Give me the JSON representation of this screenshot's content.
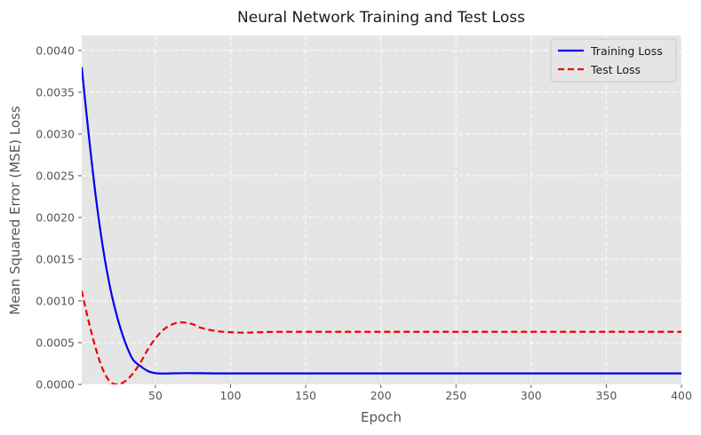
{
  "chart_data": {
    "type": "line",
    "title": "Neural Network Training and Test Loss",
    "xlabel": "Epoch",
    "ylabel": "Mean Squared Error (MSE) Loss",
    "xlim": [
      1,
      400
    ],
    "ylim": [
      0,
      0.00418
    ],
    "x_ticks": [
      50,
      100,
      150,
      200,
      250,
      300,
      350,
      400
    ],
    "y_ticks": [
      "0.0000",
      "0.0005",
      "0.0010",
      "0.0015",
      "0.0020",
      "0.0025",
      "0.0030",
      "0.0035",
      "0.0040"
    ],
    "grid": true,
    "legend_position": "top-right",
    "series": [
      {
        "name": "Training Loss",
        "color": "#0000ee",
        "style": "solid",
        "x": [
          1,
          5,
          10,
          15,
          20,
          25,
          30,
          35,
          40,
          45,
          50,
          55,
          60,
          70,
          80,
          90,
          100,
          150,
          200,
          250,
          300,
          350,
          400
        ],
        "y": [
          0.0038,
          0.0031,
          0.0023,
          0.00165,
          0.00115,
          0.00078,
          0.0005,
          0.0003,
          0.00022,
          0.00016,
          0.000135,
          0.00013,
          0.000132,
          0.000135,
          0.000134,
          0.000132,
          0.000132,
          0.000132,
          0.000132,
          0.000132,
          0.000132,
          0.000132,
          0.000132
        ]
      },
      {
        "name": "Test Loss",
        "color": "#ee0000",
        "style": "dashed",
        "x": [
          1,
          5,
          10,
          15,
          20,
          25,
          30,
          35,
          40,
          45,
          50,
          55,
          60,
          65,
          70,
          75,
          80,
          90,
          100,
          110,
          120,
          130,
          150,
          200,
          250,
          300,
          350,
          400
        ],
        "y": [
          0.00112,
          0.0008,
          0.00045,
          0.00018,
          3e-05,
          0.0,
          4e-05,
          0.00013,
          0.00026,
          0.00042,
          0.00055,
          0.00065,
          0.00071,
          0.00074,
          0.00074,
          0.00072,
          0.00068,
          0.00064,
          0.000625,
          0.00062,
          0.000625,
          0.00063,
          0.00063,
          0.00063,
          0.00063,
          0.00063,
          0.00063,
          0.00063
        ]
      }
    ]
  },
  "colors": {
    "plot_background": "#e5e5e5",
    "grid": "#ffffff"
  }
}
